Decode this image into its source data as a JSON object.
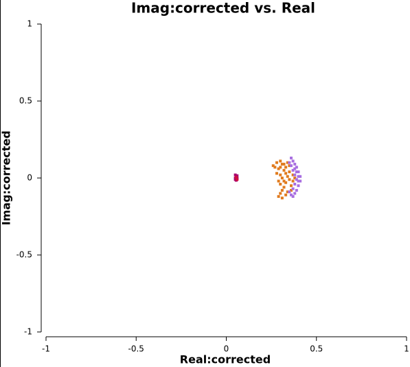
{
  "chart_data": {
    "type": "scatter",
    "title": "Imag:corrected vs. Real",
    "x_label": "Real:corrected",
    "y_label": "Imag:corrected",
    "xlim": [
      -1,
      1
    ],
    "ylim": [
      -1,
      1
    ],
    "xticks": [
      -1,
      -0.5,
      0,
      0.5,
      1
    ],
    "yticks": [
      1,
      0.5,
      0,
      -0.5,
      -1
    ],
    "series": [
      {
        "color": "#e07b1e",
        "x": [
          0.26,
          0.27,
          0.28,
          0.29,
          0.3,
          0.31,
          0.32,
          0.28,
          0.3,
          0.31,
          0.29,
          0.3,
          0.32,
          0.31,
          0.3,
          0.29,
          0.31,
          0.33,
          0.34,
          0.33,
          0.34,
          0.35,
          0.33,
          0.34,
          0.36,
          0.35,
          0.37,
          0.36,
          0.32,
          0.33,
          0.3,
          0.35,
          0.37,
          0.38,
          0.32
        ],
        "y": [
          0.08,
          0.07,
          0.1,
          0.06,
          0.11,
          0.09,
          0.05,
          0.03,
          0.02,
          0.0,
          -0.02,
          -0.04,
          -0.06,
          -0.08,
          -0.1,
          -0.12,
          -0.13,
          -0.11,
          -0.09,
          -0.03,
          0.01,
          0.04,
          0.07,
          0.1,
          -0.05,
          -0.01,
          0.02,
          -0.08,
          -0.02,
          0.03,
          0.07,
          0.08,
          -0.02,
          0.0,
          0.09
        ]
      },
      {
        "color": "#a86ee0",
        "x": [
          0.36,
          0.37,
          0.38,
          0.39,
          0.4,
          0.41,
          0.41,
          0.4,
          0.39,
          0.38,
          0.37,
          0.36,
          0.37,
          0.38,
          0.39,
          0.38,
          0.37,
          0.36,
          0.39,
          0.4,
          0.35,
          0.35,
          0.38,
          0.4
        ],
        "y": [
          0.13,
          0.11,
          0.09,
          0.07,
          0.04,
          0.01,
          -0.02,
          -0.05,
          -0.08,
          -0.1,
          -0.12,
          -0.11,
          0.05,
          0.02,
          -0.01,
          -0.04,
          -0.07,
          0.08,
          0.04,
          -0.02,
          0.1,
          -0.09,
          0.06,
          0.01
        ]
      },
      {
        "color": "#a8006e",
        "x": [
          0.05,
          0.055,
          0.06,
          0.05,
          0.06,
          0.055,
          0.05,
          0.06
        ],
        "y": [
          0.02,
          0.01,
          0.015,
          0.0,
          -0.005,
          -0.015,
          -0.01,
          0.0
        ]
      },
      {
        "color": "#d0103a",
        "x": [
          0.055,
          0.06
        ],
        "y": [
          0.005,
          -0.01
        ]
      }
    ]
  }
}
